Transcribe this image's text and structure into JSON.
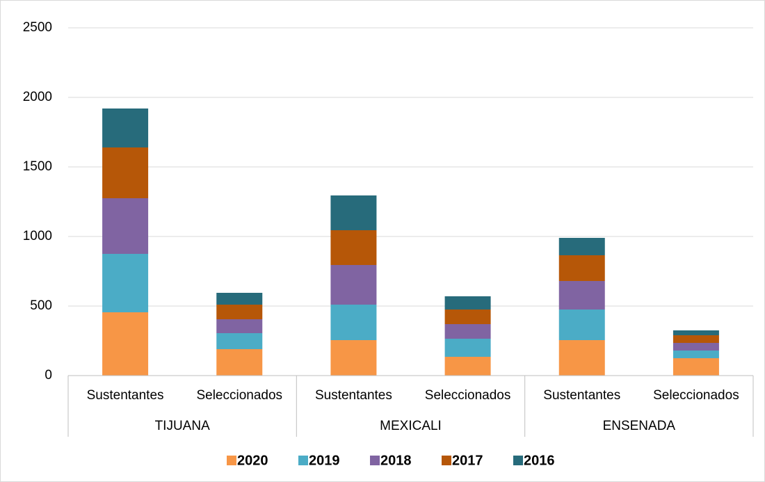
{
  "chart_data": {
    "type": "stacked-bar",
    "categories": [
      "Sustentantes",
      "Seleccionados",
      "Sustentantes",
      "Seleccionados",
      "Sustentantes",
      "Seleccionados"
    ],
    "groups": [
      "TIJUANA",
      "MEXICALI",
      "ENSENADA"
    ],
    "series": [
      {
        "name": "2020",
        "color": "#f79646",
        "values": [
          455,
          190,
          255,
          135,
          255,
          125
        ]
      },
      {
        "name": "2019",
        "color": "#4bacc6",
        "values": [
          420,
          115,
          255,
          130,
          220,
          55
        ]
      },
      {
        "name": "2018",
        "color": "#8064a2",
        "values": [
          400,
          100,
          285,
          105,
          205,
          55
        ]
      },
      {
        "name": "2017",
        "color": "#b65708",
        "values": [
          365,
          105,
          250,
          105,
          185,
          55
        ]
      },
      {
        "name": "2016",
        "color": "#276b7b",
        "values": [
          280,
          85,
          250,
          95,
          125,
          35
        ]
      }
    ],
    "ylim": [
      0,
      2500
    ],
    "yticks": [
      0,
      500,
      1000,
      1500,
      2000,
      2500
    ],
    "grid": true,
    "legend": "bottom"
  }
}
